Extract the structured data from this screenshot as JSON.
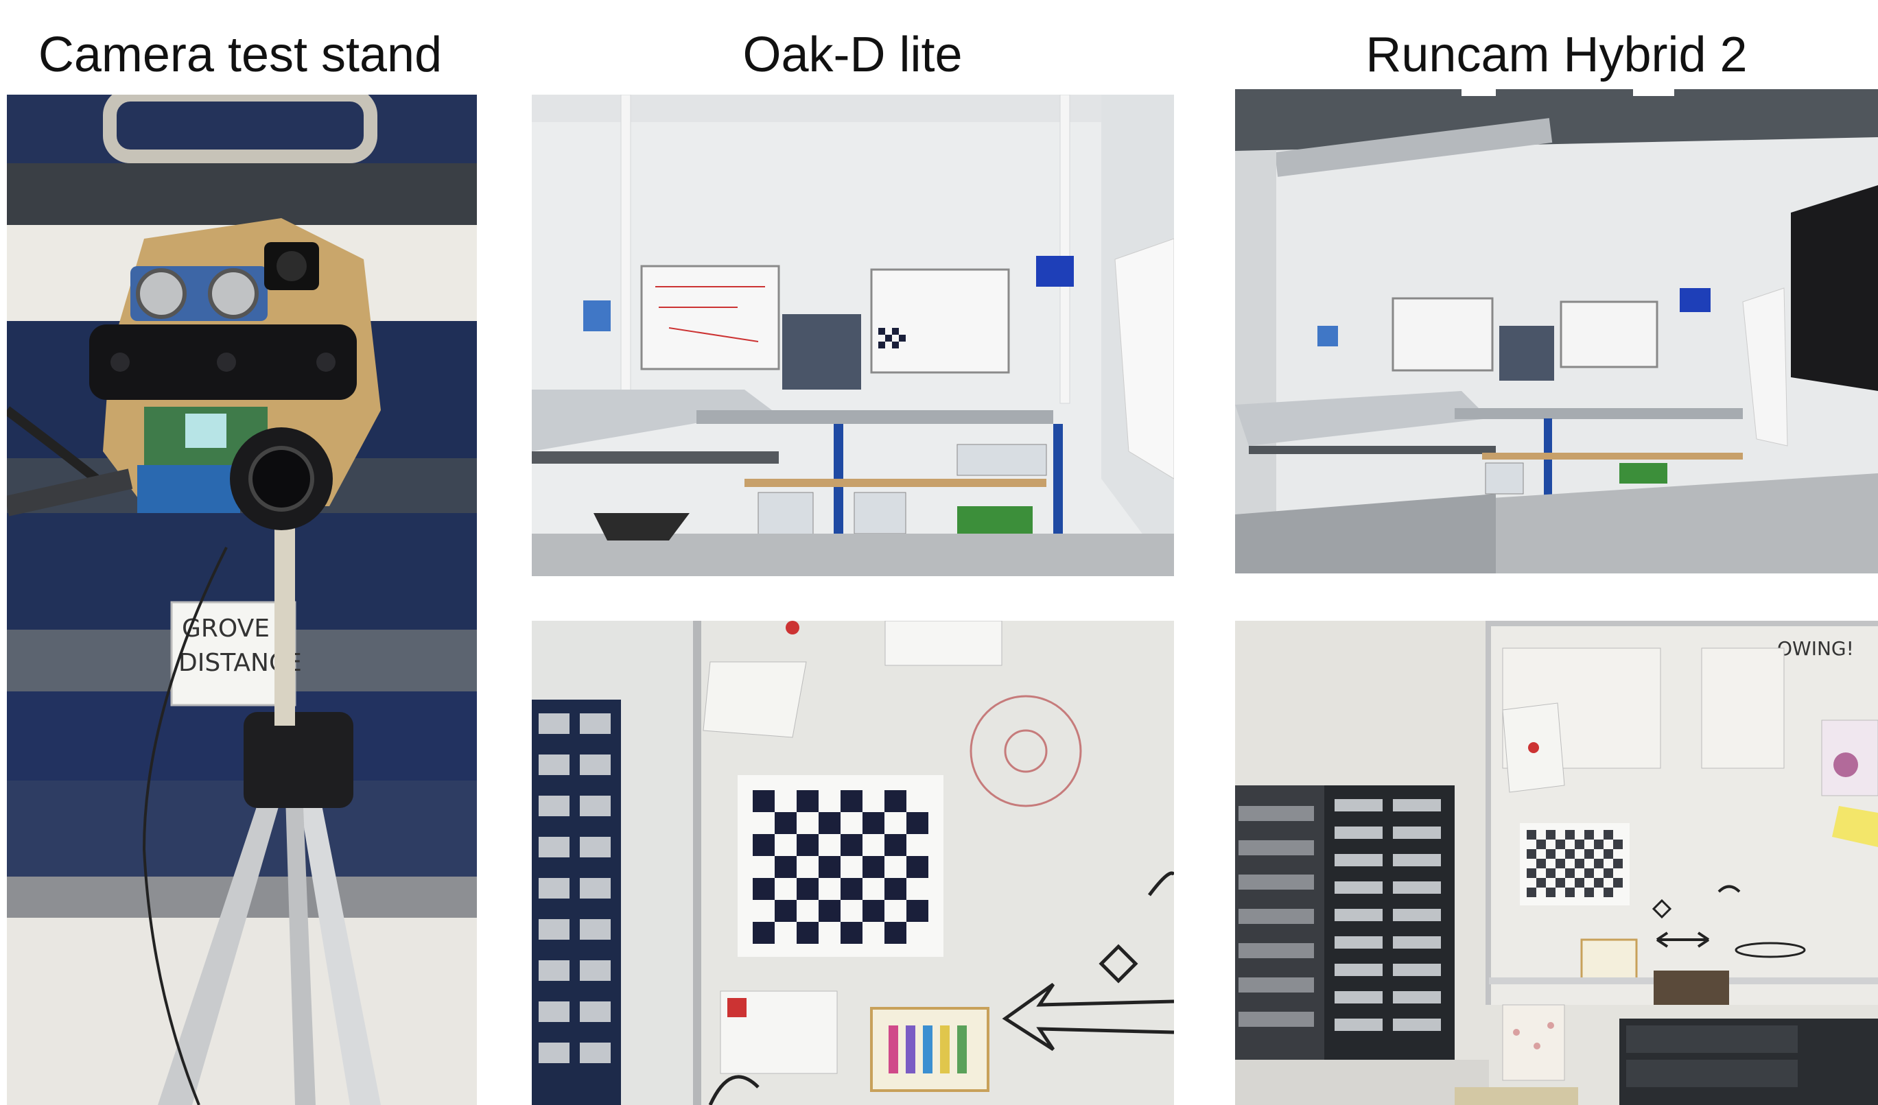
{
  "titles": {
    "camera_stand": "Camera test stand",
    "oak_d_lite": "Oak-D lite",
    "runcam": "Runcam Hybrid 2"
  },
  "photos": {
    "camera_stand": {
      "label_sign": "GROVE\nDISTANCE"
    },
    "runcam_closeup": {
      "whiteboard_text": "OWING!"
    }
  },
  "colors": {
    "background": "#ffffff",
    "cabinet_blue": "#1f2f57",
    "plywood": "#c9a66b",
    "wall": "#e9ebec",
    "floor": "#b9bcbf",
    "checker_dark": "#1a1f3a"
  }
}
